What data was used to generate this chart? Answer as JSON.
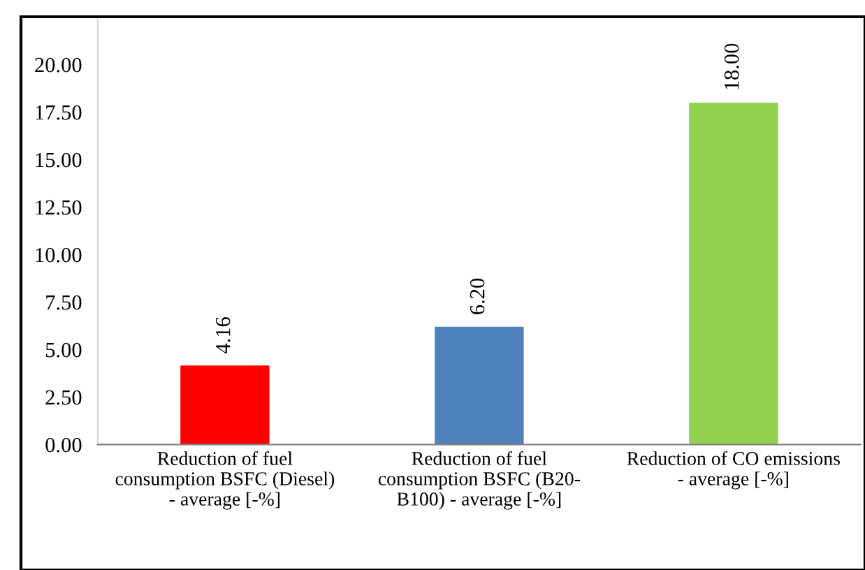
{
  "chart_data": {
    "type": "bar",
    "categories": [
      "Reduction of fuel\nconsumption BSFC (Diesel)\n- average [-%]",
      "Reduction of fuel\nconsumption BSFC (B20-\nB100) - average [-%]",
      "Reduction of CO emissions\n- average [-%]"
    ],
    "values": [
      4.16,
      6.2,
      18.0
    ],
    "value_labels": [
      "4.16",
      "6.20",
      "18.00"
    ],
    "colors": [
      "#ff0000",
      "#4f81bd",
      "#92d050"
    ],
    "ylim": [
      0,
      22.5
    ],
    "yticks": [
      {
        "value": 0,
        "label": "0.00"
      },
      {
        "value": 2.5,
        "label": "2.50"
      },
      {
        "value": 5,
        "label": "5.00"
      },
      {
        "value": 7.5,
        "label": "7.50"
      },
      {
        "value": 10,
        "label": "10.00"
      },
      {
        "value": 12.5,
        "label": "12.50"
      },
      {
        "value": 15,
        "label": "15.00"
      },
      {
        "value": 17.5,
        "label": "17.50"
      },
      {
        "value": 20,
        "label": "20.00"
      }
    ],
    "grid": false,
    "legend": false
  }
}
